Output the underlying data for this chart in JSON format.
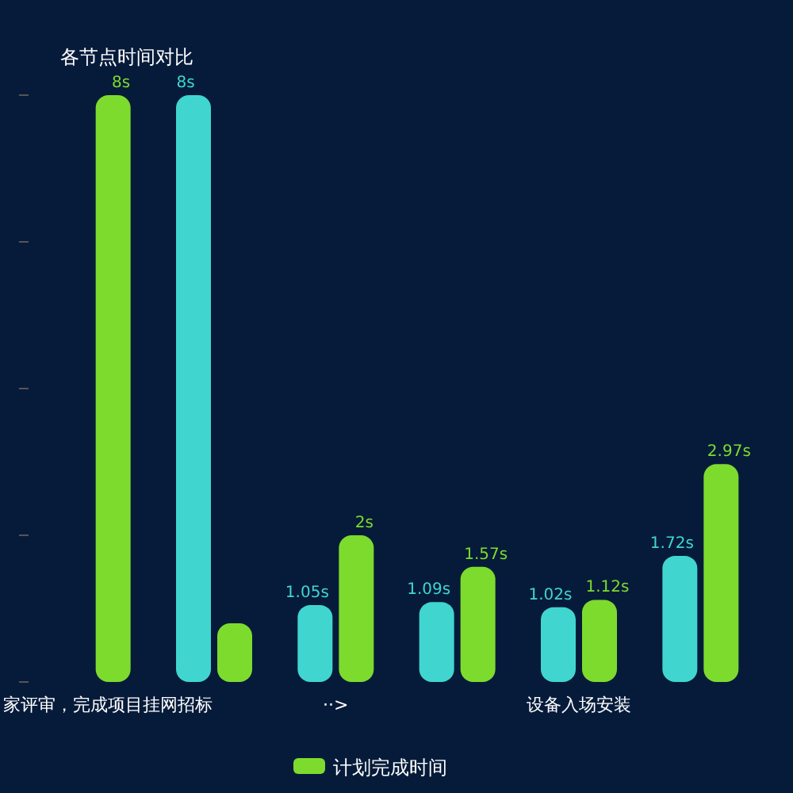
{
  "chart_data": {
    "type": "bar",
    "title": "各节点时间对比",
    "categories": [
      "家评审，完成项目挂网招标",
      null,
      "··>",
      null,
      "设备入场安装",
      null
    ],
    "tick_labels": "x",
    "legend": "bottom",
    "series": [
      {
        "name": "计划完成时间",
        "color": "#7ddb2e",
        "values": [
          8,
          0.8,
          2,
          1.57,
          1.12,
          2.97
        ],
        "value_labels": [
          "8s",
          null,
          "2s",
          "1.57s",
          "1.12s",
          "2.97s"
        ]
      },
      {
        "color": "#40d6cf",
        "values": [
          null,
          8,
          1.05,
          1.09,
          1.02,
          1.72
        ],
        "value_labels": [
          null,
          "8s",
          "1.05s",
          "1.09s",
          "1.02s",
          "1.72s"
        ]
      }
    ]
  }
}
